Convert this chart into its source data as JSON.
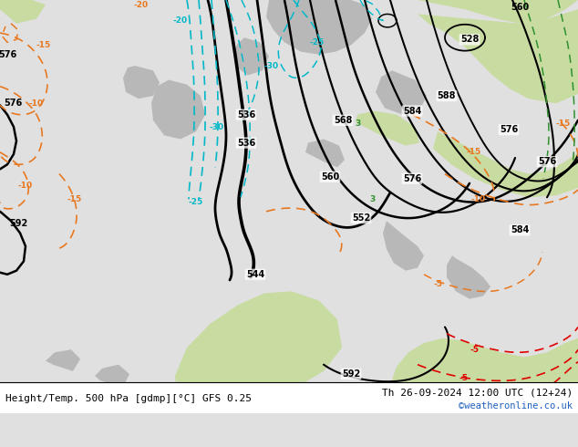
{
  "title_left": "Height/Temp. 500 hPa [gdmp][°C] GFS 0.25",
  "title_right": "Th 26-09-2024 12:00 UTC (12+24)",
  "credit": "©weatheronline.co.uk",
  "bg_light": "#e0e0e0",
  "land_green": "#c8dba0",
  "land_gray": "#b8b8b8",
  "sea": "#d8d8d8",
  "black": "#000000",
  "orange": "#e87820",
  "cyan": "#00b8c8",
  "red": "#e00000",
  "green": "#309030"
}
